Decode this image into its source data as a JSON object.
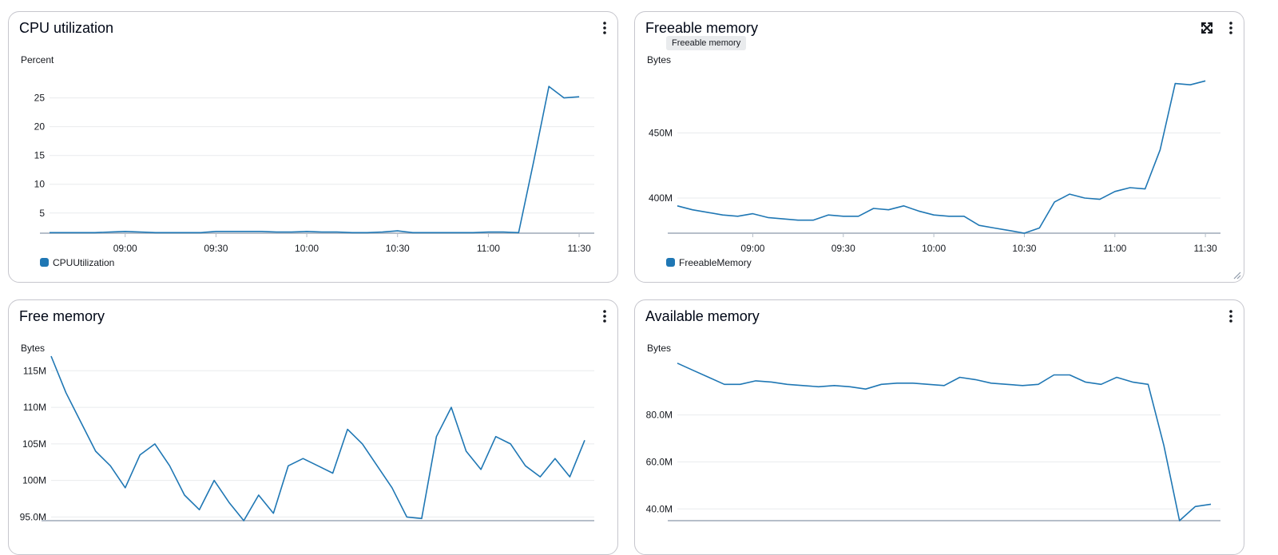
{
  "charts": [
    {
      "title": "CPU utilization",
      "unit": "Percent",
      "legend": "CPUUtilization",
      "ymin": 1.5,
      "ymax": 28,
      "yticks": [
        5,
        10,
        15,
        20,
        25
      ],
      "ytick_labels": [
        "5",
        "10",
        "15",
        "20",
        "25"
      ],
      "xticks": [
        "09:00",
        "09:30",
        "10:00",
        "10:30",
        "11:00",
        "11:30"
      ],
      "show_expand": false,
      "tooltip": ""
    },
    {
      "title": "Freeable memory",
      "unit": "Bytes",
      "legend": "FreeableMemory",
      "ymin": 373,
      "ymax": 500,
      "yticks": [
        400,
        450
      ],
      "ytick_labels": [
        "400M",
        "450M"
      ],
      "xticks": [
        "09:00",
        "09:30",
        "10:00",
        "10:30",
        "11:00",
        "11:30"
      ],
      "show_expand": true,
      "tooltip": "Freeable memory"
    },
    {
      "title": "Free memory",
      "unit": "Bytes",
      "legend": "",
      "ymin": 94.5,
      "ymax": 117,
      "yticks": [
        95,
        100,
        105,
        110,
        115
      ],
      "ytick_labels": [
        "95.0M",
        "100M",
        "105M",
        "110M",
        "115M"
      ],
      "xticks": [],
      "show_expand": false,
      "tooltip": ""
    },
    {
      "title": "Available memory",
      "unit": "Bytes",
      "legend": "",
      "ymin": 35,
      "ymax": 105,
      "yticks": [
        40,
        60,
        80
      ],
      "ytick_labels": [
        "40.0M",
        "60.0M",
        "80.0M"
      ],
      "xticks": [],
      "show_expand": false,
      "tooltip": ""
    }
  ],
  "chart_data": [
    {
      "type": "line",
      "title": "CPU utilization",
      "ylabel": "Percent",
      "x_range": [
        "08:35",
        "11:35"
      ],
      "series": [
        {
          "name": "CPUUtilization",
          "color": "#1f77b4",
          "x": [
            "08:35",
            "08:40",
            "08:45",
            "08:50",
            "08:55",
            "09:00",
            "09:05",
            "09:10",
            "09:15",
            "09:20",
            "09:25",
            "09:30",
            "09:35",
            "09:40",
            "09:45",
            "09:50",
            "09:55",
            "10:00",
            "10:05",
            "10:10",
            "10:15",
            "10:20",
            "10:25",
            "10:30",
            "10:35",
            "10:40",
            "10:45",
            "10:50",
            "10:55",
            "11:00",
            "11:05",
            "11:10",
            "11:15",
            "11:20",
            "11:25",
            "11:30"
          ],
          "values": [
            1.6,
            1.6,
            1.6,
            1.6,
            1.7,
            1.8,
            1.7,
            1.6,
            1.6,
            1.6,
            1.6,
            1.8,
            1.8,
            1.8,
            1.8,
            1.7,
            1.7,
            1.8,
            1.7,
            1.7,
            1.6,
            1.6,
            1.7,
            1.9,
            1.6,
            1.6,
            1.6,
            1.6,
            1.6,
            1.7,
            1.7,
            1.6,
            14,
            27,
            25,
            25.2
          ]
        }
      ]
    },
    {
      "type": "line",
      "title": "Freeable memory",
      "ylabel": "Bytes",
      "x_range": [
        "08:35",
        "11:35"
      ],
      "series": [
        {
          "name": "FreeableMemory",
          "color": "#1f77b4",
          "x": [
            "08:35",
            "08:40",
            "08:45",
            "08:50",
            "08:55",
            "09:00",
            "09:05",
            "09:10",
            "09:15",
            "09:20",
            "09:25",
            "09:30",
            "09:35",
            "09:40",
            "09:45",
            "09:50",
            "09:55",
            "10:00",
            "10:05",
            "10:10",
            "10:15",
            "10:20",
            "10:25",
            "10:30",
            "10:35",
            "10:40",
            "10:45",
            "10:50",
            "10:55",
            "11:00",
            "11:05",
            "11:10",
            "11:15",
            "11:20",
            "11:25",
            "11:30"
          ],
          "values": [
            394,
            391,
            389,
            387,
            386,
            388,
            385,
            384,
            383,
            383,
            387,
            386,
            386,
            392,
            391,
            394,
            390,
            387,
            386,
            386,
            379,
            377,
            375,
            373,
            377,
            397,
            403,
            400,
            399,
            405,
            408,
            407,
            437,
            488,
            487,
            490
          ]
        }
      ]
    },
    {
      "type": "line",
      "title": "Free memory",
      "ylabel": "Bytes",
      "series": [
        {
          "color": "#1f77b4",
          "values": [
            117,
            112,
            108,
            104,
            102,
            99,
            103.5,
            105,
            102,
            98,
            96,
            100,
            97,
            94.5,
            98,
            95.5,
            102,
            103,
            102,
            101,
            107,
            105,
            102,
            99,
            95,
            94.8,
            106,
            110,
            104,
            101.5,
            106,
            105,
            102,
            100.5,
            103,
            100.5,
            105.5
          ]
        }
      ]
    },
    {
      "type": "line",
      "title": "Available memory",
      "ylabel": "Bytes",
      "series": [
        {
          "color": "#1f77b4",
          "values": [
            102,
            99,
            96,
            93,
            93,
            94.5,
            94,
            93,
            92.5,
            92,
            92.5,
            92,
            91,
            93,
            93.5,
            93.5,
            93,
            92.5,
            96,
            95,
            93.5,
            93,
            92.5,
            93,
            97,
            97,
            94,
            93,
            96,
            94,
            93,
            67,
            35,
            41,
            42
          ]
        }
      ]
    }
  ]
}
